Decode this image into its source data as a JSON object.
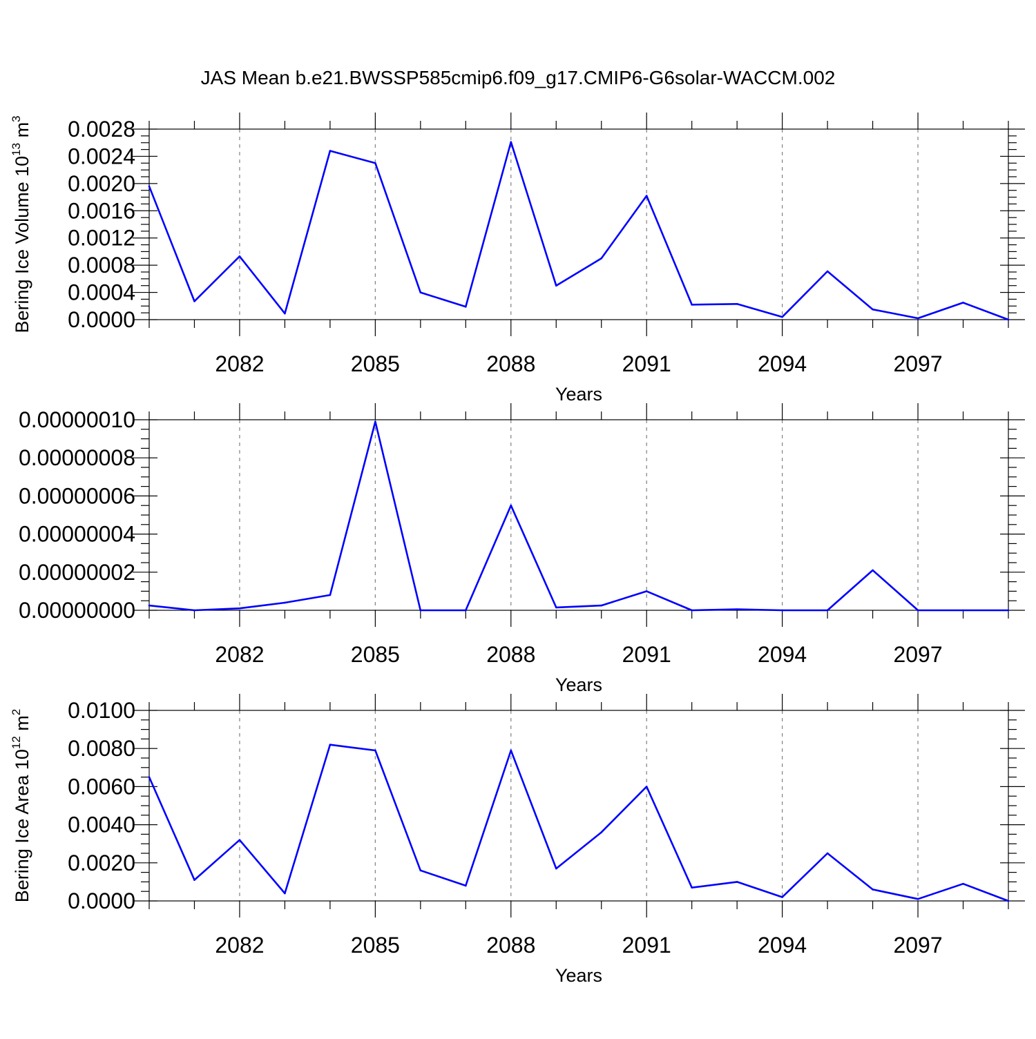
{
  "title": "JAS Mean b.e21.BWSSP585cmip6.f09_g17.CMIP6-G6solar-WACCM.002",
  "chart_data": [
    {
      "type": "line",
      "ylabel_main": "Bering Ice Volume 10",
      "ylabel_exp": "13",
      "ylabel_unit": " m",
      "ylabel_unit_exp": "3",
      "xlabel": "Years",
      "xlim": [
        2080,
        2099
      ],
      "ylim": [
        0,
        0.0028
      ],
      "yticks": [
        0,
        0.0004,
        0.0008,
        0.0012,
        0.0016,
        0.002,
        0.0024,
        0.0028
      ],
      "yticklabels": [
        "0.0000",
        "0.0004",
        "0.0008",
        "0.0012",
        "0.0016",
        "0.0020",
        "0.0024",
        "0.0028"
      ],
      "xticks": [
        2082,
        2085,
        2088,
        2091,
        2094,
        2097
      ],
      "xticklabels": [
        "2082",
        "2085",
        "2088",
        "2091",
        "2094",
        "2097"
      ],
      "grid_x": true,
      "color": "#0000ff",
      "x": [
        2080,
        2081,
        2082,
        2083,
        2084,
        2085,
        2086,
        2087,
        2088,
        2089,
        2090,
        2091,
        2092,
        2093,
        2094,
        2095,
        2096,
        2097,
        2098,
        2099
      ],
      "y": [
        0.00196,
        0.00027,
        0.00093,
        9e-05,
        0.00248,
        0.0023,
        0.0004,
        0.00019,
        0.00261,
        0.0005,
        0.0009,
        0.00182,
        0.00022,
        0.00023,
        4e-05,
        0.00071,
        0.00015,
        2e-05,
        0.00025,
        0.0
      ]
    },
    {
      "type": "line",
      "ylabel_main": "",
      "xlabel": "Years",
      "xlim": [
        2080,
        2099
      ],
      "ylim": [
        0,
        1e-07
      ],
      "yticks": [
        0,
        2e-08,
        4e-08,
        6e-08,
        8e-08,
        1e-07
      ],
      "yticklabels": [
        "0.00000000",
        "0.00000002",
        "0.00000004",
        "0.00000006",
        "0.00000008",
        "0.00000010"
      ],
      "xticks": [
        2082,
        2085,
        2088,
        2091,
        2094,
        2097
      ],
      "xticklabels": [
        "2082",
        "2085",
        "2088",
        "2091",
        "2094",
        "2097"
      ],
      "grid_x": true,
      "color": "#0000ff",
      "x": [
        2080,
        2081,
        2082,
        2083,
        2084,
        2085,
        2086,
        2087,
        2088,
        2089,
        2090,
        2091,
        2092,
        2093,
        2094,
        2095,
        2096,
        2097,
        2098,
        2099
      ],
      "y": [
        2.5e-09,
        0,
        1e-09,
        4e-09,
        8e-09,
        9.9e-08,
        0,
        0,
        5.5e-08,
        1.5e-09,
        2.5e-09,
        1e-08,
        0,
        5e-10,
        0,
        0,
        2.1e-08,
        0,
        0,
        0
      ]
    },
    {
      "type": "line",
      "ylabel_main": "Bering Ice Area 10",
      "ylabel_exp": "12",
      "ylabel_unit": " m",
      "ylabel_unit_exp": "2",
      "xlabel": "Years",
      "xlim": [
        2080,
        2099
      ],
      "ylim": [
        0,
        0.01
      ],
      "yticks": [
        0,
        0.002,
        0.004,
        0.006,
        0.008,
        0.01
      ],
      "yticklabels": [
        "0.0000",
        "0.0020",
        "0.0040",
        "0.0060",
        "0.0080",
        "0.0100"
      ],
      "xticks": [
        2082,
        2085,
        2088,
        2091,
        2094,
        2097
      ],
      "xticklabels": [
        "2082",
        "2085",
        "2088",
        "2091",
        "2094",
        "2097"
      ],
      "grid_x": true,
      "color": "#0000ff",
      "x": [
        2080,
        2081,
        2082,
        2083,
        2084,
        2085,
        2086,
        2087,
        2088,
        2089,
        2090,
        2091,
        2092,
        2093,
        2094,
        2095,
        2096,
        2097,
        2098,
        2099
      ],
      "y": [
        0.0065,
        0.0011,
        0.0032,
        0.0004,
        0.0082,
        0.0079,
        0.0016,
        0.0008,
        0.0079,
        0.0017,
        0.0036,
        0.006,
        0.0007,
        0.001,
        0.0002,
        0.0025,
        0.0006,
        0.0001,
        0.0009,
        0.0
      ]
    }
  ]
}
